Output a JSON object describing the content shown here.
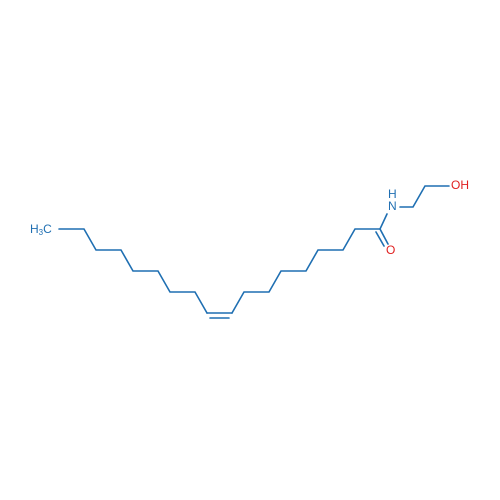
{
  "labels": {
    "methyl": {
      "main": "H",
      "sub": "3",
      "tail": "C"
    },
    "nitrogen": "N",
    "amide_h": "H",
    "oxygen": "O",
    "hydroxyl": "OH"
  }
}
